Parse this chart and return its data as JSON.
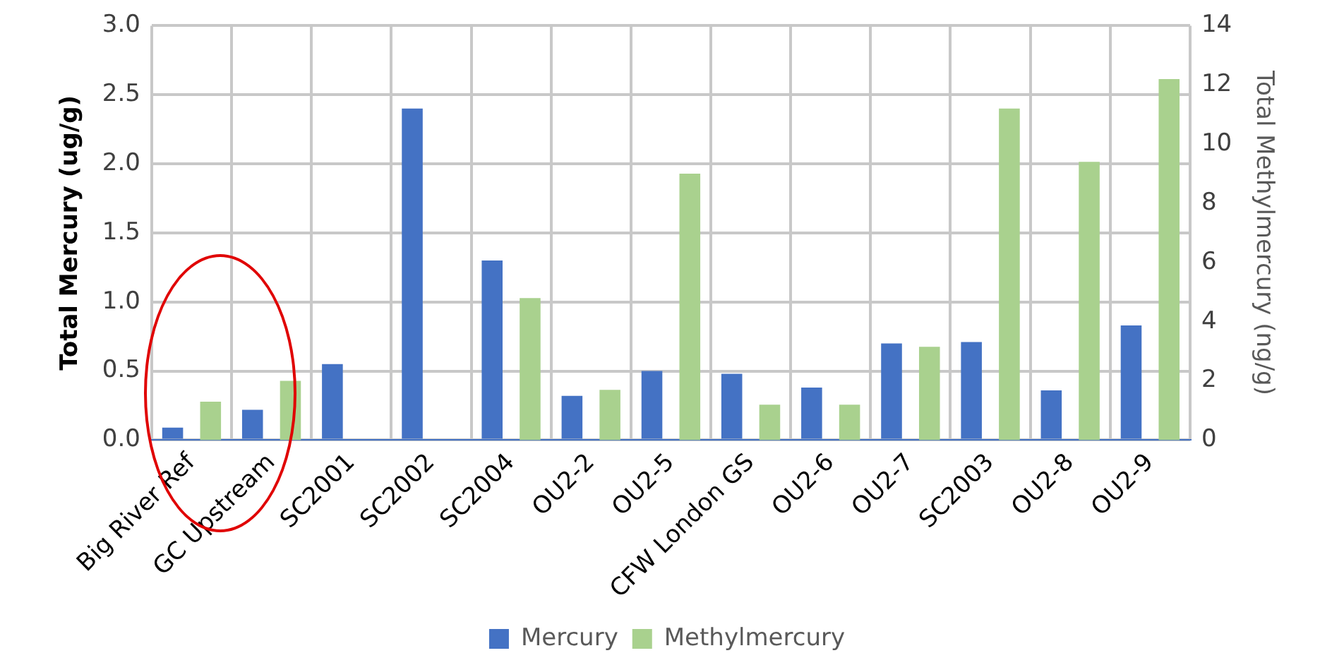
{
  "chart_data": {
    "type": "bar",
    "ylabel": "Total Mercury (ug/g)",
    "y2label": "Total Methylmercury (ng/g)",
    "categories": [
      "Big River Ref",
      "GC Upstream",
      "SC2001",
      "SC2002",
      "SC2004",
      "OU2-2",
      "OU2-5",
      "CFW London GS",
      "OU2-6",
      "OU2-7",
      "SC2003",
      "OU2-8",
      "OU2-9"
    ],
    "series": [
      {
        "name": "Mercury",
        "color": "#4472c4",
        "values": [
          0.09,
          0.22,
          0.55,
          2.4,
          1.3,
          0.32,
          0.5,
          0.48,
          0.38,
          0.7,
          0.71,
          0.36,
          0.83
        ]
      },
      {
        "name": "Methylmercury",
        "color": "#a9d18e",
        "axis": "y2",
        "values": [
          1.3,
          2.0,
          null,
          null,
          4.8,
          1.7,
          9.0,
          1.2,
          1.2,
          3.15,
          11.2,
          9.4,
          12.2
        ]
      }
    ],
    "ylim": [
      0,
      3
    ],
    "yticks": [
      {
        "value": 0,
        "label": "0.0"
      },
      {
        "value": 0.5,
        "label": "0.5"
      },
      {
        "value": 1,
        "label": "1.0"
      },
      {
        "value": 1.5,
        "label": "1.5"
      },
      {
        "value": 2,
        "label": "2.0"
      },
      {
        "value": 2.5,
        "label": "2.5"
      },
      {
        "value": 3,
        "label": "3.0"
      }
    ],
    "y2lim": [
      0,
      14
    ],
    "y2ticks": [
      0,
      2,
      4,
      6,
      8,
      10,
      12,
      14
    ],
    "grid": true,
    "legend": "bottom"
  }
}
